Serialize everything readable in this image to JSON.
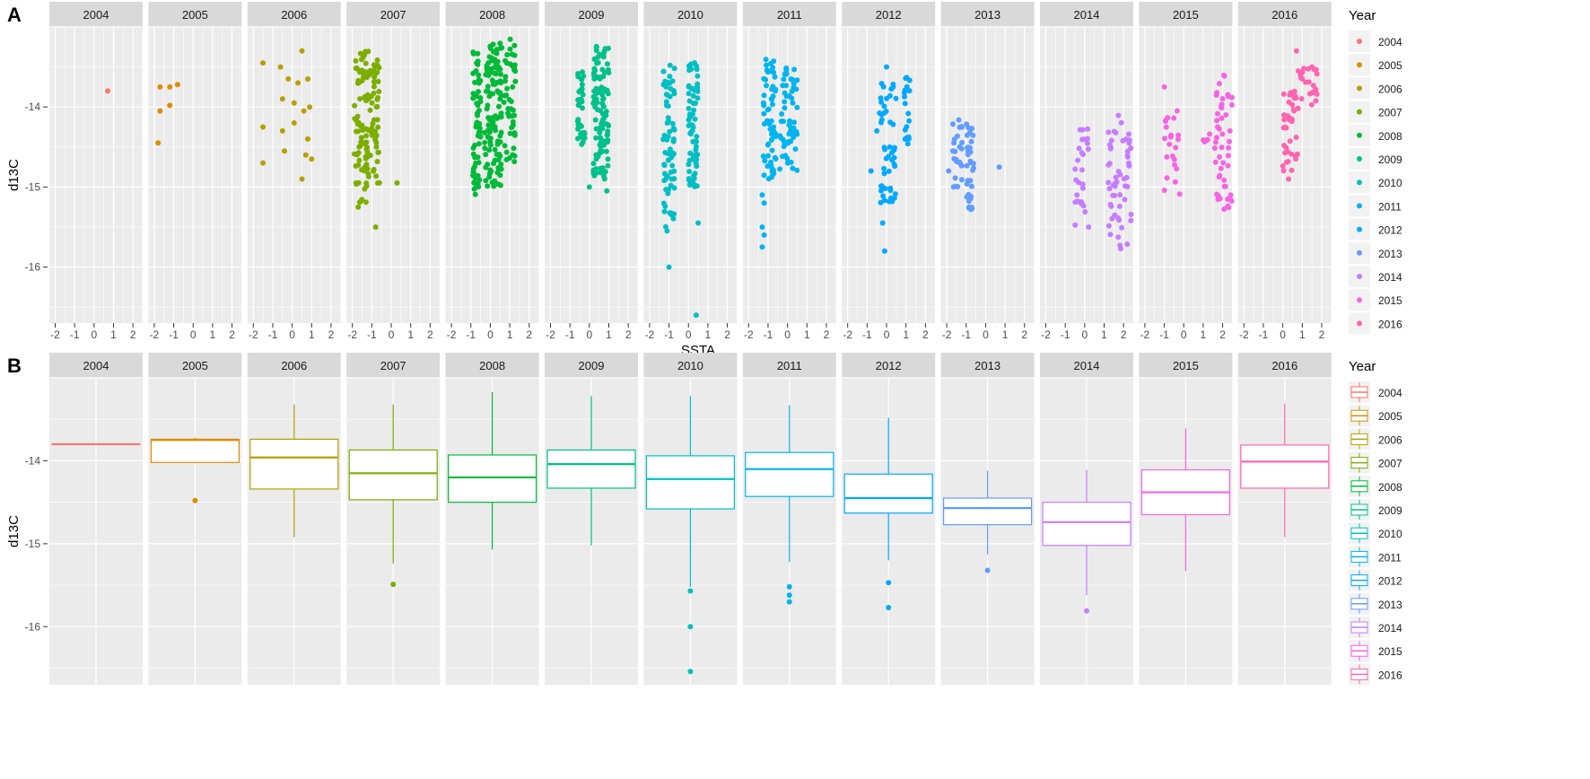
{
  "chart_data": [
    {
      "panel_label": "A",
      "type": "scatter",
      "facet_by": "Year",
      "xlabel": "SSTA",
      "ylabel": "d13C",
      "xlim": [
        -2.3,
        2.5
      ],
      "ylim": [
        -16.7,
        -13.0
      ],
      "x_ticks": [
        -2,
        -1,
        0,
        1,
        2
      ],
      "y_ticks": [
        -14,
        -15,
        -16
      ],
      "legend_title": "Year",
      "legend_position": "right",
      "facets": [
        {
          "year": "2004",
          "color": "#F8766D",
          "points": [
            [
              0.7,
              -13.8
            ]
          ]
        },
        {
          "year": "2005",
          "color": "#DE8C00",
          "points": [
            [
              -1.7,
              -13.75
            ],
            [
              -1.7,
              -14.05
            ],
            [
              -1.8,
              -14.45
            ],
            [
              -1.2,
              -13.75
            ],
            [
              -1.2,
              -13.98
            ],
            [
              -0.8,
              -13.72
            ]
          ]
        },
        {
          "year": "2006",
          "color": "#B79F00",
          "points": [
            [
              -1.5,
              -13.45
            ],
            [
              -1.5,
              -14.25
            ],
            [
              -1.5,
              -14.7
            ],
            [
              -0.6,
              -13.5
            ],
            [
              -0.5,
              -13.9
            ],
            [
              -0.5,
              -14.3
            ],
            [
              -0.4,
              -14.55
            ],
            [
              -0.2,
              -13.65
            ],
            [
              0.1,
              -13.95
            ],
            [
              0.1,
              -14.2
            ],
            [
              0.3,
              -13.7
            ],
            [
              0.5,
              -13.3
            ],
            [
              0.6,
              -14.05
            ],
            [
              0.7,
              -14.6
            ],
            [
              0.8,
              -13.65
            ],
            [
              0.9,
              -14.0
            ],
            [
              1.0,
              -14.65
            ],
            [
              0.5,
              -14.9
            ],
            [
              0.8,
              -14.4
            ]
          ]
        },
        {
          "year": "2007",
          "color": "#7CAE00",
          "points": [
            [
              0.3,
              -14.95
            ],
            [
              -0.8,
              -15.5
            ],
            [
              -1.7,
              -15.25
            ]
          ],
          "cols": [
            {
              "x0": -1.9,
              "x1": -1.0,
              "y0": -15.2,
              "y1": -13.3,
              "n": 90
            },
            {
              "x0": -1.0,
              "x1": -0.6,
              "y0": -15.0,
              "y1": -13.4,
              "n": 40
            }
          ]
        },
        {
          "year": "2008",
          "color": "#00BA38",
          "points": [],
          "cols": [
            {
              "x0": -0.9,
              "x1": -0.5,
              "y0": -15.1,
              "y1": -13.3,
              "n": 60
            },
            {
              "x0": -0.3,
              "x1": 0.6,
              "y0": -15.0,
              "y1": -13.2,
              "n": 120
            },
            {
              "x0": 0.7,
              "x1": 1.3,
              "y0": -14.7,
              "y1": -13.1,
              "n": 45
            }
          ]
        },
        {
          "year": "2009",
          "color": "#00C08B",
          "points": [
            [
              0.0,
              -15.0
            ],
            [
              0.9,
              -15.05
            ]
          ],
          "cols": [
            {
              "x0": -0.6,
              "x1": -0.2,
              "y0": -14.5,
              "y1": -13.5,
              "n": 35
            },
            {
              "x0": 0.2,
              "x1": 1.0,
              "y0": -14.9,
              "y1": -13.2,
              "n": 110
            }
          ]
        },
        {
          "year": "2010",
          "color": "#00BFC4",
          "points": [
            [
              -1.0,
              -16.0
            ],
            [
              0.4,
              -16.6
            ],
            [
              0.5,
              -15.45
            ],
            [
              -1.1,
              -15.55
            ]
          ],
          "cols": [
            {
              "x0": -1.3,
              "x1": -0.7,
              "y0": -15.5,
              "y1": -13.4,
              "n": 70
            },
            {
              "x0": 0.0,
              "x1": 0.5,
              "y0": -15.0,
              "y1": -13.4,
              "n": 70
            }
          ]
        },
        {
          "year": "2011",
          "color": "#00B4F0",
          "points": [
            [
              -1.2,
              -15.6
            ],
            [
              -1.3,
              -15.75
            ],
            [
              -1.3,
              -15.5
            ],
            [
              -1.2,
              -15.2
            ],
            [
              -1.3,
              -15.1
            ]
          ],
          "cols": [
            {
              "x0": -1.3,
              "x1": -0.6,
              "y0": -14.9,
              "y1": -13.4,
              "n": 60
            },
            {
              "x0": -0.4,
              "x1": 0.5,
              "y0": -14.8,
              "y1": -13.4,
              "n": 60
            }
          ]
        },
        {
          "year": "2012",
          "color": "#00A9FF",
          "points": [
            [
              -0.1,
              -15.8
            ],
            [
              -0.2,
              -15.45
            ],
            [
              -0.5,
              -14.3
            ],
            [
              -0.8,
              -14.8
            ],
            [
              0.0,
              -13.5
            ]
          ],
          "cols": [
            {
              "x0": -0.4,
              "x1": 0.5,
              "y0": -15.2,
              "y1": -13.7,
              "n": 50
            },
            {
              "x0": 0.9,
              "x1": 1.2,
              "y0": -14.5,
              "y1": -13.6,
              "n": 18
            }
          ]
        },
        {
          "year": "2013",
          "color": "#619CFF",
          "points": [
            [
              0.7,
              -14.75
            ],
            [
              -1.9,
              -14.8
            ]
          ],
          "cols": [
            {
              "x0": -1.7,
              "x1": -1.2,
              "y0": -15.0,
              "y1": -14.1,
              "n": 25
            },
            {
              "x0": -1.0,
              "x1": -0.6,
              "y0": -15.3,
              "y1": -14.2,
              "n": 35
            }
          ]
        },
        {
          "year": "2014",
          "color": "#C77CFF",
          "points": [
            [
              -0.2,
              -15.2
            ],
            [
              -0.4,
              -15.1
            ],
            [
              0.2,
              -15.5
            ]
          ],
          "cols": [
            {
              "x0": -0.5,
              "x1": 0.2,
              "y0": -15.6,
              "y1": -14.2,
              "n": 25
            },
            {
              "x0": 1.2,
              "x1": 2.4,
              "y0": -15.8,
              "y1": -14.1,
              "n": 55
            }
          ]
        },
        {
          "year": "2015",
          "color": "#F564E3",
          "points": [
            [
              -1.0,
              -13.75
            ]
          ],
          "cols": [
            {
              "x0": -1.0,
              "x1": -0.2,
              "y0": -15.2,
              "y1": -14.0,
              "n": 22
            },
            {
              "x0": 1.0,
              "x1": 1.4,
              "y0": -14.6,
              "y1": -14.3,
              "n": 6
            },
            {
              "x0": 1.6,
              "x1": 2.5,
              "y0": -15.3,
              "y1": -13.6,
              "n": 50
            }
          ]
        },
        {
          "year": "2016",
          "color": "#FF64B0",
          "points": [
            [
              0.3,
              -14.9
            ],
            [
              0.7,
              -13.3
            ],
            [
              0.8,
              -13.55
            ]
          ],
          "cols": [
            {
              "x0": 0.0,
              "x1": 0.8,
              "y0": -14.8,
              "y1": -13.8,
              "n": 40
            },
            {
              "x0": 0.9,
              "x1": 1.8,
              "y0": -14.0,
              "y1": -13.5,
              "n": 22
            }
          ]
        }
      ]
    },
    {
      "panel_label": "B",
      "type": "boxplot",
      "facet_by": "Year",
      "xlabel": "",
      "ylabel": "d13C",
      "ylim": [
        -16.7,
        -13.0
      ],
      "y_ticks": [
        -14,
        -15,
        -16
      ],
      "legend_title": "Year",
      "legend_position": "right",
      "boxes": [
        {
          "year": "2004",
          "color": "#F8766D",
          "q1": -13.8,
          "median": -13.8,
          "q3": -13.8,
          "whisker_low": -13.8,
          "whisker_high": -13.8,
          "outliers": []
        },
        {
          "year": "2005",
          "color": "#DE8C00",
          "q1": -14.02,
          "median": -13.75,
          "q3": -13.74,
          "whisker_low": -14.02,
          "whisker_high": -13.72,
          "outliers": [
            -14.48
          ]
        },
        {
          "year": "2006",
          "color": "#B79F00",
          "q1": -14.34,
          "median": -13.96,
          "q3": -13.74,
          "whisker_low": -14.92,
          "whisker_high": -13.32,
          "outliers": []
        },
        {
          "year": "2007",
          "color": "#7CAE00",
          "q1": -14.47,
          "median": -14.15,
          "q3": -13.87,
          "whisker_low": -15.24,
          "whisker_high": -13.32,
          "outliers": [
            -15.49
          ]
        },
        {
          "year": "2008",
          "color": "#00BA38",
          "q1": -14.5,
          "median": -14.2,
          "q3": -13.93,
          "whisker_low": -15.07,
          "whisker_high": -13.17,
          "outliers": []
        },
        {
          "year": "2009",
          "color": "#00C08B",
          "q1": -14.33,
          "median": -14.04,
          "q3": -13.87,
          "whisker_low": -15.02,
          "whisker_high": -13.22,
          "outliers": []
        },
        {
          "year": "2010",
          "color": "#00BFC4",
          "q1": -14.58,
          "median": -14.22,
          "q3": -13.94,
          "whisker_low": -15.52,
          "whisker_high": -13.22,
          "outliers": [
            -15.57,
            -16.0,
            -16.54
          ]
        },
        {
          "year": "2011",
          "color": "#00B4F0",
          "q1": -14.43,
          "median": -14.1,
          "q3": -13.9,
          "whisker_low": -15.22,
          "whisker_high": -13.33,
          "outliers": [
            -15.52,
            -15.62,
            -15.7
          ]
        },
        {
          "year": "2012",
          "color": "#00A9FF",
          "q1": -14.63,
          "median": -14.45,
          "q3": -14.16,
          "whisker_low": -15.2,
          "whisker_high": -13.48,
          "outliers": [
            -15.47,
            -15.77
          ]
        },
        {
          "year": "2013",
          "color": "#619CFF",
          "q1": -14.77,
          "median": -14.57,
          "q3": -14.45,
          "whisker_low": -15.13,
          "whisker_high": -14.12,
          "outliers": [
            -15.32
          ]
        },
        {
          "year": "2014",
          "color": "#C77CFF",
          "q1": -15.02,
          "median": -14.74,
          "q3": -14.5,
          "whisker_low": -15.62,
          "whisker_high": -14.11,
          "outliers": [
            -15.81
          ]
        },
        {
          "year": "2015",
          "color": "#F564E3",
          "q1": -14.65,
          "median": -14.38,
          "q3": -14.11,
          "whisker_low": -15.33,
          "whisker_high": -13.61,
          "outliers": []
        },
        {
          "year": "2016",
          "color": "#FF64B0",
          "q1": -14.33,
          "median": -14.01,
          "q3": -13.81,
          "whisker_low": -14.92,
          "whisker_high": -13.31,
          "outliers": []
        }
      ]
    }
  ]
}
